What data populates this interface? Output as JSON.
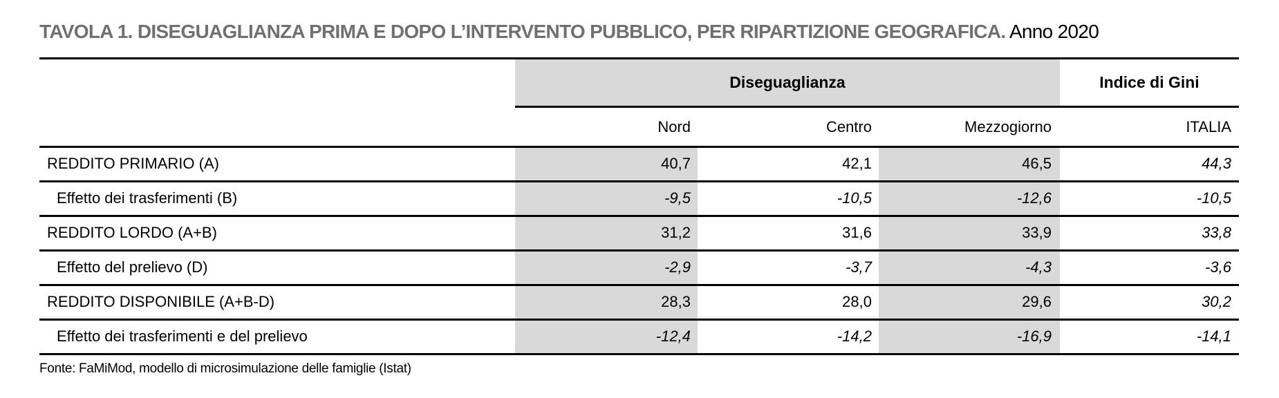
{
  "title": {
    "main": "TAVOLA 1. DISEGUAGLIANZA PRIMA E DOPO L’INTERVENTO PUBBLICO, PER RIPARTIZIONE GEOGRAFICA.",
    "suffix": " Anno 2020"
  },
  "colors": {
    "shading": "#d9d9d9",
    "title_gray": "#6e7072",
    "rule": "#000000"
  },
  "chart_data": {
    "type": "table",
    "title": "TAVOLA 1. DISEGUAGLIANZA PRIMA E DOPO L’INTERVENTO PUBBLICO, PER RIPARTIZIONE GEOGRAFICA. Anno 2020",
    "group_headers": [
      {
        "label": "Diseguaglianza",
        "spans": [
          "Nord",
          "Centro",
          "Mezzogiorno"
        ]
      },
      {
        "label": "Indice di Gini",
        "spans": [
          "ITALIA"
        ]
      }
    ],
    "columns": [
      "Nord",
      "Centro",
      "Mezzogiorno",
      "ITALIA"
    ],
    "rows": [
      {
        "label": "REDDITO PRIMARIO (A)",
        "values": [
          "40,7",
          "42,1",
          "46,5",
          "44,3"
        ]
      },
      {
        "label": "Effetto dei trasferimenti (B)",
        "values": [
          "-9,5",
          "-10,5",
          "-12,6",
          "-10,5"
        ]
      },
      {
        "label": "REDDITO LORDO (A+B)",
        "values": [
          "31,2",
          "31,6",
          "33,9",
          "33,8"
        ]
      },
      {
        "label": "Effetto del prelievo (D)",
        "values": [
          "-2,9",
          "-3,7",
          "-4,3",
          "-3,6"
        ]
      },
      {
        "label": "REDDITO DISPONIBILE (A+B-D)",
        "values": [
          "28,3",
          "28,0",
          "29,6",
          "30,2"
        ]
      },
      {
        "label": "Effetto dei trasferimenti e del prelievo",
        "values": [
          "-12,4",
          "-14,2",
          "-16,9",
          "-14,1"
        ]
      }
    ]
  },
  "source": "Fonte: FaMiMod, modello di microsimulazione delle famiglie (Istat)"
}
